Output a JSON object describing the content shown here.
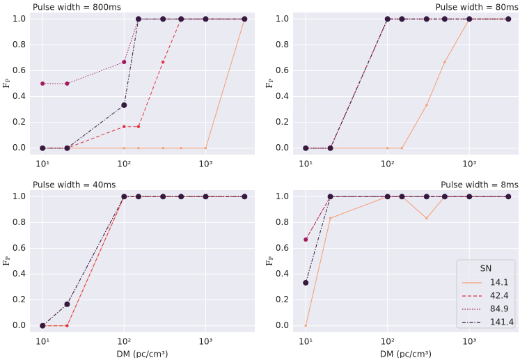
{
  "chart_data": [
    {
      "type": "line",
      "title": "Pulse width = 800ms",
      "title_loc": "left",
      "ylabel": "F",
      "ylabel_sub": "P",
      "x": [
        10,
        20,
        100,
        150,
        300,
        500,
        1000,
        3000
      ],
      "log_x": true,
      "grid": true,
      "xlim": [
        7,
        4000
      ],
      "ylim": [
        -0.05,
        1.05
      ],
      "xticks": [
        {
          "value": 10,
          "label": "10¹"
        },
        {
          "value": 100,
          "label": "10²"
        },
        {
          "value": 1000,
          "label": "10³"
        }
      ],
      "yticks": [
        {
          "value": 0,
          "label": "0.0"
        },
        0.2,
        0.4,
        0.6,
        0.8,
        {
          "value": 1,
          "label": "1.0"
        }
      ],
      "series": [
        {
          "name": "14.1",
          "color": "#f69c73",
          "linestyle": "solid",
          "values": [
            0,
            0,
            0,
            0,
            0,
            0,
            0,
            1
          ]
        },
        {
          "name": "42.4",
          "color": "#e13342",
          "linestyle": "dashed",
          "values": [
            0,
            0,
            0.167,
            0.167,
            0.667,
            1,
            1,
            1
          ]
        },
        {
          "name": "84.9",
          "color": "#a11a5b",
          "linestyle": "dotted",
          "values": [
            0.5,
            0.5,
            0.667,
            1,
            1,
            1,
            1,
            1
          ]
        },
        {
          "name": "141.4",
          "color": "#35193e",
          "linestyle": "dashdot",
          "values": [
            0,
            0,
            0.333,
            1,
            1,
            1,
            1,
            1
          ]
        }
      ]
    },
    {
      "type": "line",
      "title": "Pulse width = 80ms",
      "title_loc": "right",
      "ylabel": "F",
      "ylabel_sub": "P",
      "x": [
        10,
        20,
        100,
        150,
        300,
        500,
        1000,
        3000
      ],
      "log_x": true,
      "grid": true,
      "xlim": [
        7,
        4000
      ],
      "ylim": [
        -0.05,
        1.05
      ],
      "xticks": [
        {
          "value": 10,
          "label": "10¹"
        },
        {
          "value": 100,
          "label": "10²"
        },
        {
          "value": 1000,
          "label": "10³"
        }
      ],
      "yticks": [
        {
          "value": 0,
          "label": "0.0"
        },
        0.2,
        0.4,
        0.6,
        0.8,
        {
          "value": 1,
          "label": "1.0"
        }
      ],
      "series": [
        {
          "name": "14.1",
          "color": "#f69c73",
          "linestyle": "solid",
          "values": [
            0,
            0,
            0,
            0,
            0.333,
            0.667,
            1,
            1
          ]
        },
        {
          "name": "42.4",
          "color": "#e13342",
          "linestyle": "dashed",
          "values": [
            0,
            0,
            1,
            1,
            1,
            1,
            1,
            1
          ]
        },
        {
          "name": "84.9",
          "color": "#a11a5b",
          "linestyle": "dotted",
          "values": [
            0,
            0,
            1,
            1,
            1,
            1,
            1,
            1
          ]
        },
        {
          "name": "141.4",
          "color": "#35193e",
          "linestyle": "dashdot",
          "values": [
            0,
            0,
            1,
            1,
            1,
            1,
            1,
            1
          ]
        }
      ]
    },
    {
      "type": "line",
      "title": "Pulse width = 40ms",
      "title_loc": "left",
      "ylabel": "F",
      "ylabel_sub": "P",
      "xlabel": "DM (pc/cm³)",
      "x": [
        10,
        20,
        100,
        150,
        300,
        500,
        1000,
        3000
      ],
      "log_x": true,
      "grid": true,
      "xlim": [
        7,
        4000
      ],
      "ylim": [
        -0.05,
        1.05
      ],
      "xticks": [
        {
          "value": 10,
          "label": "10¹"
        },
        {
          "value": 100,
          "label": "10²"
        },
        {
          "value": 1000,
          "label": "10³"
        }
      ],
      "yticks": [
        {
          "value": 0,
          "label": "0.0"
        },
        0.2,
        0.4,
        0.6,
        0.8,
        {
          "value": 1,
          "label": "1.0"
        }
      ],
      "series": [
        {
          "name": "14.1",
          "color": "#f69c73",
          "linestyle": "solid",
          "values": [
            0,
            0,
            1,
            1,
            1,
            1,
            1,
            1
          ]
        },
        {
          "name": "42.4",
          "color": "#e13342",
          "linestyle": "dashed",
          "values": [
            0,
            0,
            1,
            1,
            1,
            1,
            1,
            1
          ]
        },
        {
          "name": "84.9",
          "color": "#a11a5b",
          "linestyle": "dotted",
          "values": [
            0,
            0.167,
            1,
            1,
            1,
            1,
            1,
            1
          ]
        },
        {
          "name": "141.4",
          "color": "#35193e",
          "linestyle": "dashdot",
          "values": [
            0,
            0.167,
            1,
            1,
            1,
            1,
            1,
            1
          ]
        }
      ]
    },
    {
      "type": "line",
      "title": "Pulse width = 8ms",
      "title_loc": "right",
      "ylabel": "F",
      "ylabel_sub": "P",
      "xlabel": "DM (pc/cm³)",
      "x": [
        10,
        20,
        100,
        150,
        300,
        500,
        1000,
        3000
      ],
      "log_x": true,
      "grid": true,
      "xlim": [
        7,
        4000
      ],
      "ylim": [
        -0.05,
        1.05
      ],
      "xticks": [
        {
          "value": 10,
          "label": "10¹"
        },
        {
          "value": 100,
          "label": "10²"
        },
        {
          "value": 1000,
          "label": "10³"
        }
      ],
      "yticks": [
        {
          "value": 0,
          "label": "0.0"
        },
        0.2,
        0.4,
        0.6,
        0.8,
        {
          "value": 1,
          "label": "1.0"
        }
      ],
      "legend": {
        "title": "SN",
        "loc": "lower right"
      },
      "series": [
        {
          "name": "14.1",
          "color": "#f69c73",
          "linestyle": "solid",
          "values": [
            0,
            0.833,
            1,
            1,
            0.833,
            1,
            1,
            1
          ]
        },
        {
          "name": "42.4",
          "color": "#e13342",
          "linestyle": "dashed",
          "values": [
            0.667,
            1,
            1,
            1,
            1,
            1,
            1,
            1
          ]
        },
        {
          "name": "84.9",
          "color": "#a11a5b",
          "linestyle": "dotted",
          "values": [
            0.667,
            1,
            1,
            1,
            1,
            1,
            1,
            1
          ]
        },
        {
          "name": "141.4",
          "color": "#35193e",
          "linestyle": "dashdot",
          "values": [
            0.333,
            1,
            1,
            1,
            1,
            1,
            1,
            1
          ]
        }
      ]
    }
  ]
}
